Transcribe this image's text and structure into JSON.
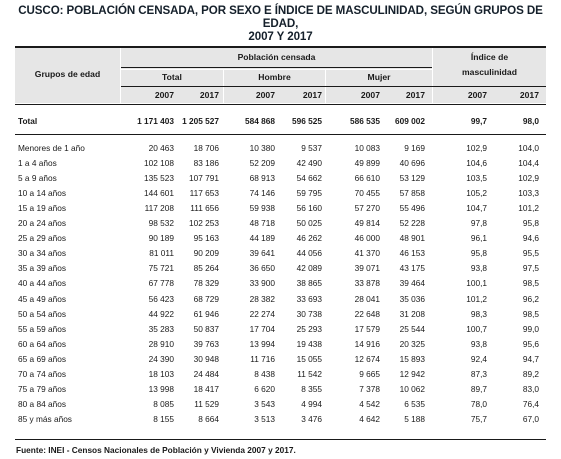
{
  "title_line1": "CUSCO: POBLACIÓN CENSADA, POR SEXO E ÍNDICE DE MASCULINIDAD, SEGÚN GRUPOS DE EDAD,",
  "title_line2": "2007 Y 2017",
  "headers": {
    "grupos": "Grupos de edad",
    "poblacion": "Población censada",
    "indice_line1": "Índice de",
    "indice_line2": "masculinidad",
    "total": "Total",
    "hombre": "Hombre",
    "mujer": "Mujer",
    "years": [
      "2007",
      "2017",
      "2007",
      "2017",
      "2007",
      "2017",
      "2007",
      "2017"
    ]
  },
  "total_row": {
    "label": "Total",
    "values": [
      "1 171 403",
      "1 205 527",
      "584 868",
      "596 525",
      "586 535",
      "609 002",
      "99,7",
      "98,0"
    ]
  },
  "rows": [
    {
      "label": "Menores de 1 año",
      "values": [
        "20 463",
        "18 706",
        "10 380",
        "9 537",
        "10 083",
        "9 169",
        "102,9",
        "104,0"
      ]
    },
    {
      "label": "1 a 4 años",
      "values": [
        "102 108",
        "83 186",
        "52 209",
        "42 490",
        "49 899",
        "40 696",
        "104,6",
        "104,4"
      ]
    },
    {
      "label": "5 a 9 años",
      "values": [
        "135 523",
        "107 791",
        "68 913",
        "54 662",
        "66 610",
        "53 129",
        "103,5",
        "102,9"
      ]
    },
    {
      "label": "10 a 14 años",
      "values": [
        "144 601",
        "117 653",
        "74 146",
        "59 795",
        "70 455",
        "57 858",
        "105,2",
        "103,3"
      ]
    },
    {
      "label": "15 a 19 años",
      "values": [
        "117 208",
        "111 656",
        "59 938",
        "56 160",
        "57 270",
        "55 496",
        "104,7",
        "101,2"
      ]
    },
    {
      "label": "20 a 24 años",
      "values": [
        "98 532",
        "102 253",
        "48 718",
        "50 025",
        "49 814",
        "52 228",
        "97,8",
        "95,8"
      ]
    },
    {
      "label": "25 a 29 años",
      "values": [
        "90 189",
        "95 163",
        "44 189",
        "46 262",
        "46 000",
        "48 901",
        "96,1",
        "94,6"
      ]
    },
    {
      "label": "30 a 34 años",
      "values": [
        "81 011",
        "90 209",
        "39 641",
        "44 056",
        "41 370",
        "46 153",
        "95,8",
        "95,5"
      ]
    },
    {
      "label": "35 a 39 años",
      "values": [
        "75 721",
        "85 264",
        "36 650",
        "42 089",
        "39 071",
        "43 175",
        "93,8",
        "97,5"
      ]
    },
    {
      "label": "40 a 44 años",
      "values": [
        "67 778",
        "78 329",
        "33 900",
        "38 865",
        "33 878",
        "39 464",
        "100,1",
        "98,5"
      ]
    },
    {
      "label": "45 a 49 años",
      "values": [
        "56 423",
        "68 729",
        "28 382",
        "33 693",
        "28 041",
        "35 036",
        "101,2",
        "96,2"
      ]
    },
    {
      "label": "50 a 54 años",
      "values": [
        "44 922",
        "61 946",
        "22 274",
        "30 738",
        "22 648",
        "31 208",
        "98,3",
        "98,5"
      ]
    },
    {
      "label": "55 a 59 años",
      "values": [
        "35 283",
        "50 837",
        "17 704",
        "25 293",
        "17 579",
        "25 544",
        "100,7",
        "99,0"
      ]
    },
    {
      "label": "60 a 64 años",
      "values": [
        "28 910",
        "39 763",
        "13 994",
        "19 438",
        "14 916",
        "20 325",
        "93,8",
        "95,6"
      ]
    },
    {
      "label": "65 a 69 años",
      "values": [
        "24 390",
        "30 948",
        "11 716",
        "15 055",
        "12 674",
        "15 893",
        "92,4",
        "94,7"
      ]
    },
    {
      "label": "70 a 74 años",
      "values": [
        "18 103",
        "24 484",
        "8 438",
        "11 542",
        "9 665",
        "12 942",
        "87,3",
        "89,2"
      ]
    },
    {
      "label": "75 a 79 años",
      "values": [
        "13 998",
        "18 417",
        "6 620",
        "8 355",
        "7 378",
        "10 062",
        "89,7",
        "83,0"
      ]
    },
    {
      "label": "80 a 84 años",
      "values": [
        "8 085",
        "11 529",
        "3 543",
        "4 994",
        "4 542",
        "6 535",
        "78,0",
        "76,4"
      ]
    },
    {
      "label": "85 y más años",
      "values": [
        "8 155",
        "8 664",
        "3 513",
        "3 476",
        "4 642",
        "5 188",
        "75,7",
        "67,0"
      ]
    }
  ],
  "source": "Fuente: INEI - Censos Nacionales de Población y Vivienda 2007 y 2017."
}
